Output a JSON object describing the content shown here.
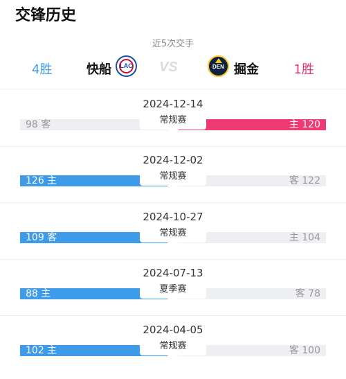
{
  "header": {
    "title": "交锋历史",
    "subtitle": "近5次交手"
  },
  "teams": {
    "left": {
      "wins": "4胜",
      "name": "快船",
      "logo_text": "LAC"
    },
    "right": {
      "wins": "1胜",
      "name": "掘金",
      "logo_text": "DEN"
    },
    "vs": "VS"
  },
  "colors": {
    "blue": "#3d9be9",
    "pink": "#ef3a72",
    "gray": "#eeeff2"
  },
  "games": [
    {
      "date": "2024-12-14",
      "type": "常规赛",
      "left_label": "98 客",
      "right_label": "主 120",
      "winner": "right"
    },
    {
      "date": "2024-12-02",
      "type": "常规赛",
      "left_label": "126 主",
      "right_label": "客 122",
      "winner": "left"
    },
    {
      "date": "2024-10-27",
      "type": "常规赛",
      "left_label": "109 客",
      "right_label": "主 104",
      "winner": "left"
    },
    {
      "date": "2024-07-13",
      "type": "夏季赛",
      "left_label": "88 主",
      "right_label": "客 78",
      "winner": "left"
    },
    {
      "date": "2024-04-05",
      "type": "常规赛",
      "left_label": "102 主",
      "right_label": "客 100",
      "winner": "left"
    }
  ]
}
